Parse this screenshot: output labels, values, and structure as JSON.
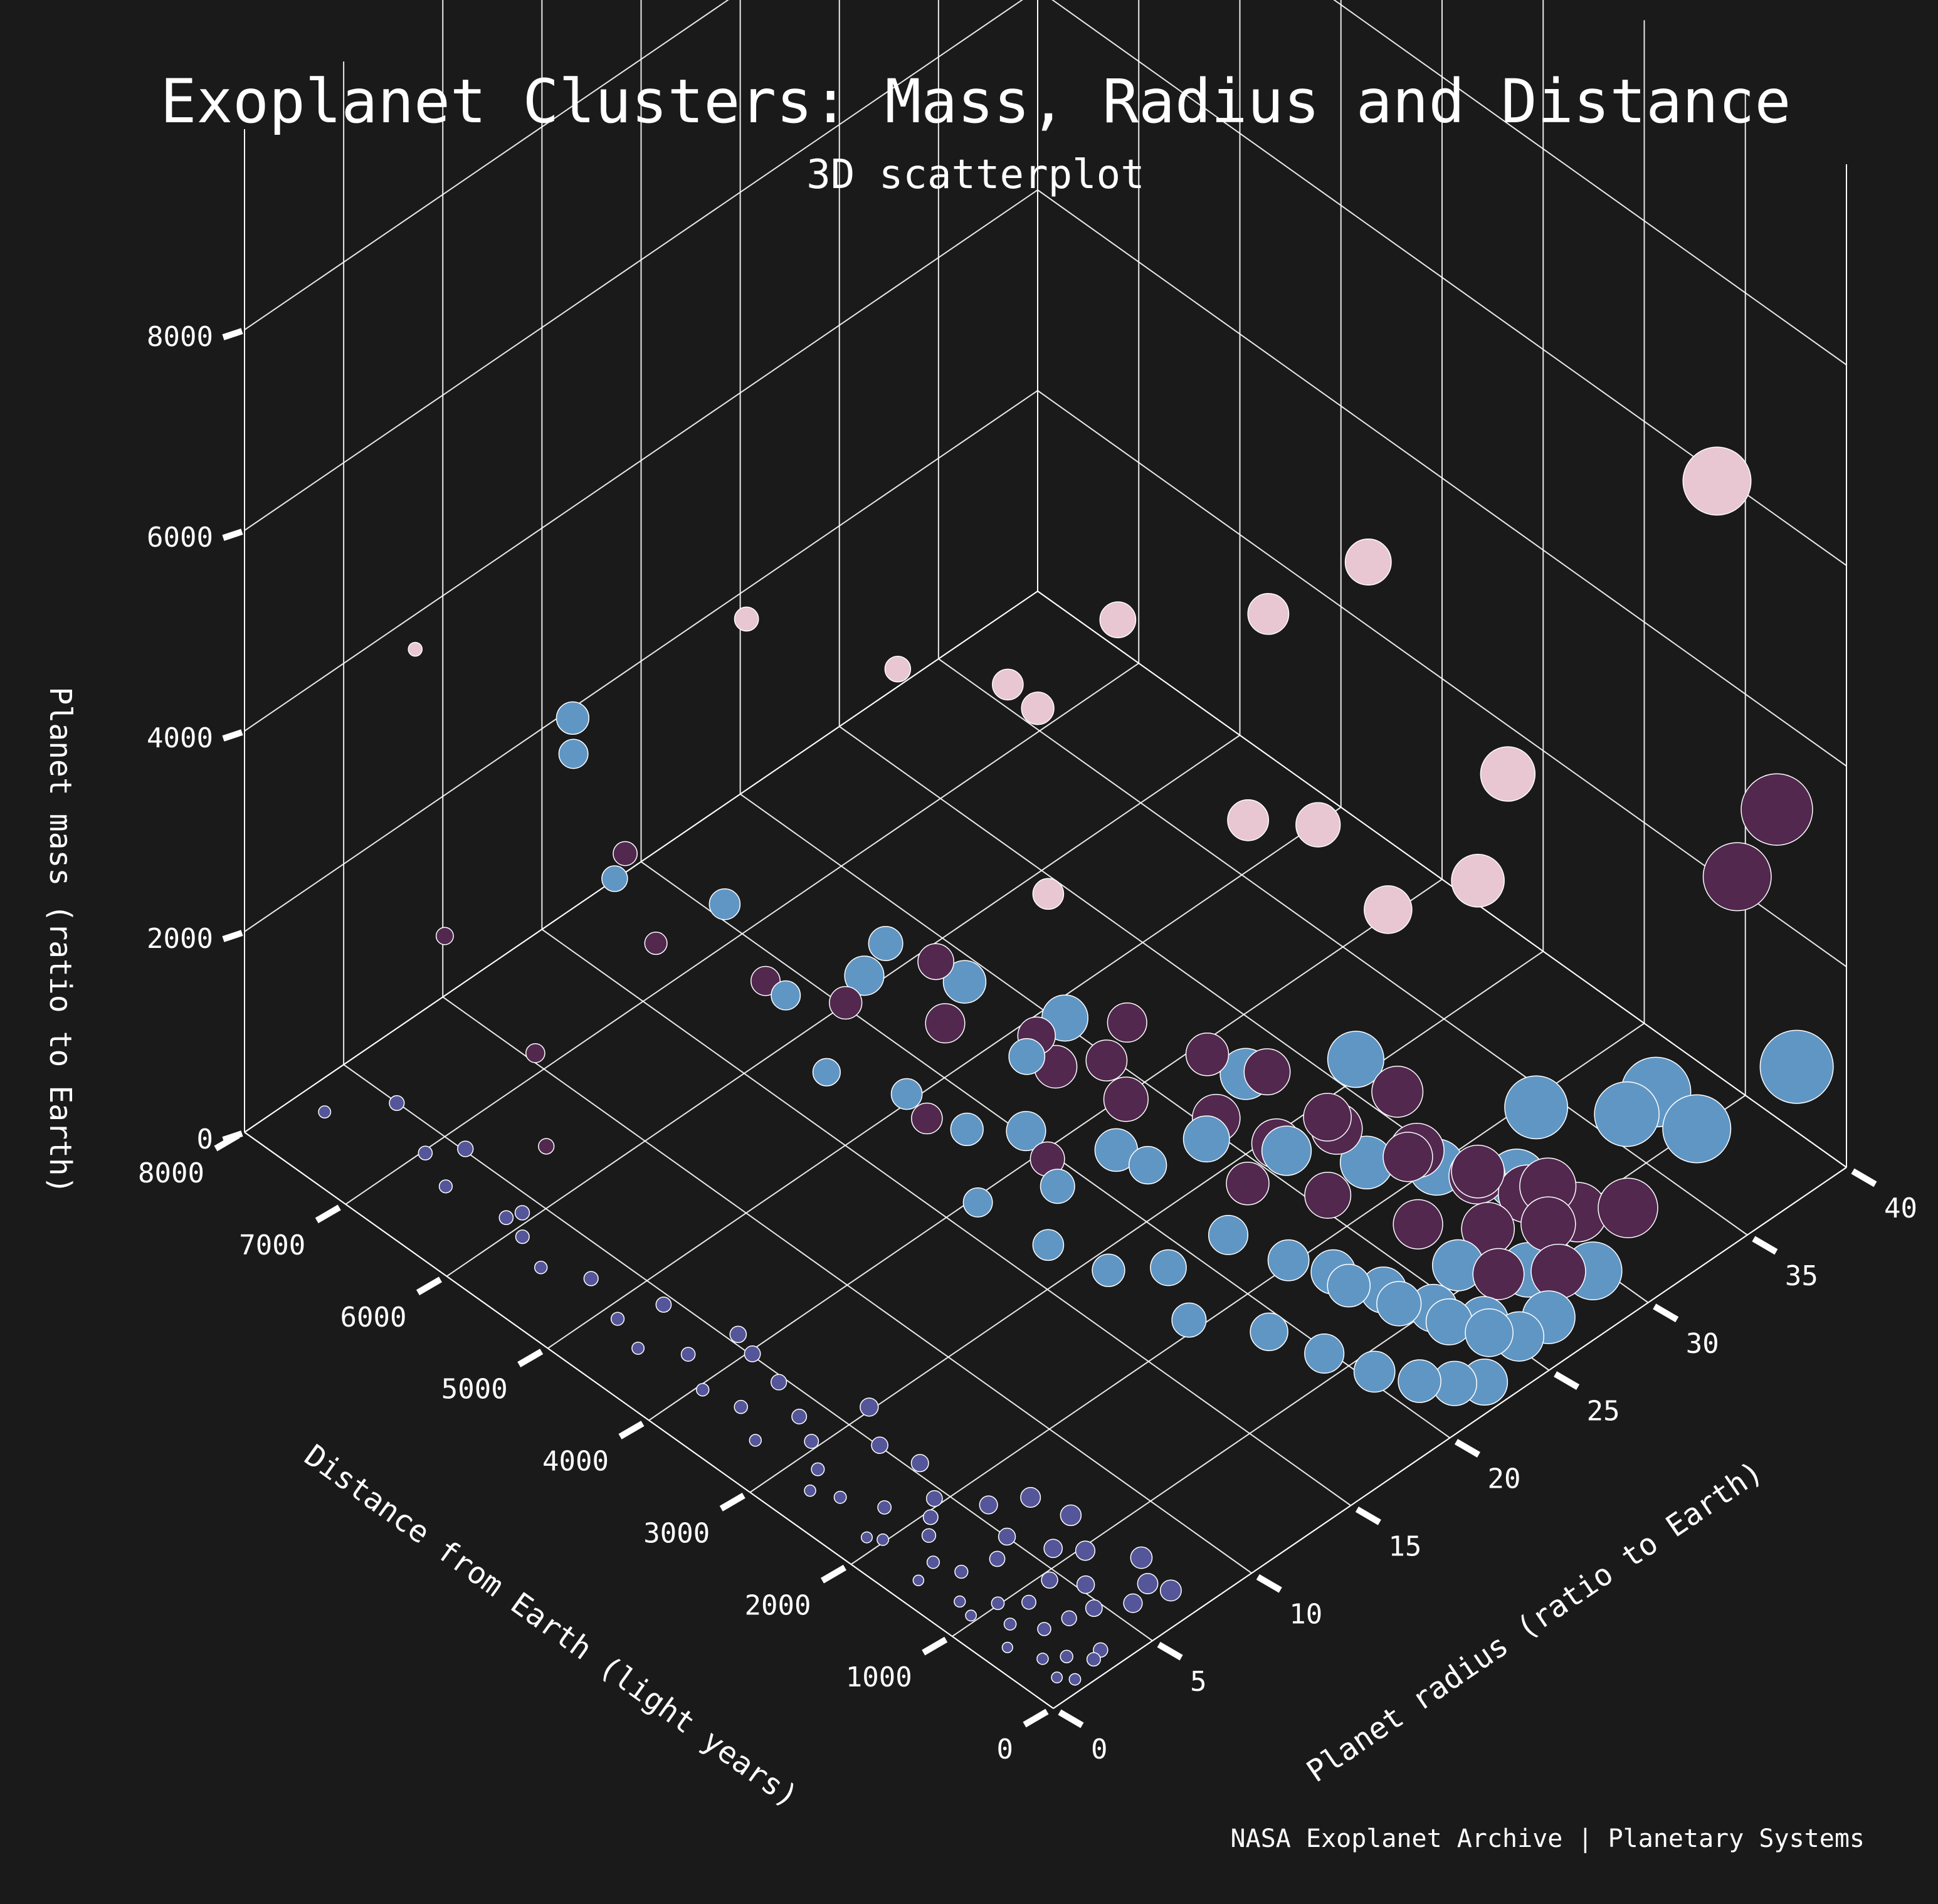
{
  "chart_data": {
    "type": "scatter",
    "projection": "3d",
    "title": "Exoplanet Clusters: Mass, Radius and Distance",
    "subtitle": "3D scatterplot",
    "source": "NASA Exoplanet Archive | Planetary Systems",
    "axes": {
      "x": {
        "label": "Distance from Earth (light years)",
        "range": [
          0,
          8000
        ],
        "ticks": [
          "0",
          "1000",
          "2000",
          "3000",
          "4000",
          "5000",
          "6000",
          "7000",
          "8000"
        ]
      },
      "y": {
        "label": "Planet radius (ratio to Earth)",
        "range": [
          0,
          40
        ],
        "ticks": [
          "0",
          "5",
          "10",
          "15",
          "20",
          "25",
          "30",
          "35",
          "40"
        ]
      },
      "z": {
        "label": "Planet mass (ratio to Earth)",
        "range": [
          0,
          8000
        ],
        "ticks": [
          "0",
          "2000",
          "4000",
          "6000",
          "8000"
        ]
      }
    },
    "grid": true,
    "background": "#1a1a1a",
    "cluster_colors": [
      "#55559a",
      "#6096c4",
      "#52284f",
      "#e8c6d2"
    ],
    "marker_edge_color": "#ffffff",
    "note": "point size increases with planet radius",
    "series": [
      {
        "cluster": 1,
        "color": "#55559a",
        "points": [
          [
            6800,
            3,
            250
          ],
          [
            7600,
            2,
            220
          ],
          [
            6000,
            3,
            180
          ],
          [
            6500,
            2.5,
            200
          ],
          [
            5500,
            2.2,
            150
          ],
          [
            5800,
            2.8,
            160
          ],
          [
            5200,
            3.2,
            120
          ],
          [
            4800,
            2.5,
            100
          ],
          [
            4500,
            2.0,
            90
          ],
          [
            4200,
            3.0,
            110
          ],
          [
            3900,
            2.2,
            80
          ],
          [
            3600,
            2.6,
            70
          ],
          [
            3300,
            1.8,
            60
          ],
          [
            3000,
            3.1,
            90
          ],
          [
            2800,
            2.4,
            50
          ],
          [
            2500,
            2.0,
            40
          ],
          [
            2200,
            2.7,
            60
          ],
          [
            2000,
            1.6,
            30
          ],
          [
            1800,
            2.9,
            40
          ],
          [
            1600,
            2.1,
            25
          ],
          [
            1400,
            2.5,
            20
          ],
          [
            1200,
            1.4,
            15
          ],
          [
            1000,
            2.3,
            20
          ],
          [
            800,
            1.9,
            10
          ],
          [
            600,
            2.6,
            10
          ],
          [
            400,
            1.5,
            5
          ],
          [
            300,
            2.2,
            5
          ],
          [
            200,
            1.2,
            3
          ],
          [
            150,
            2.8,
            4
          ],
          [
            100,
            1.6,
            2
          ],
          [
            2600,
            4.5,
            150
          ],
          [
            2300,
            5.0,
            120
          ],
          [
            2000,
            4.2,
            90
          ],
          [
            1700,
            5.4,
            80
          ],
          [
            1400,
            4.8,
            60
          ],
          [
            1100,
            5.6,
            50
          ],
          [
            900,
            4.4,
            40
          ],
          [
            700,
            5.2,
            30
          ],
          [
            500,
            4.6,
            20
          ],
          [
            350,
            5.8,
            15
          ],
          [
            1500,
            6.5,
            150
          ],
          [
            1200,
            7.0,
            120
          ],
          [
            900,
            6.2,
            90
          ],
          [
            600,
            7.5,
            60
          ],
          [
            400,
            6.8,
            40
          ],
          [
            250,
            7.2,
            25
          ],
          [
            3500,
            4.0,
            200
          ],
          [
            4000,
            4.5,
            250
          ],
          [
            3200,
            3.5,
            140
          ],
          [
            2900,
            5.5,
            180
          ],
          [
            7200,
            3.6,
            380
          ],
          [
            6600,
            4.0,
            300
          ],
          [
            5900,
            3.3,
            260
          ],
          [
            4600,
            3.8,
            210
          ],
          [
            3800,
            4.2,
            240
          ],
          [
            1900,
            3.5,
            70
          ],
          [
            1300,
            3.8,
            45
          ],
          [
            850,
            3.1,
            30
          ],
          [
            550,
            3.6,
            18
          ],
          [
            180,
            3.3,
            8
          ],
          [
            2700,
            1.5,
            30
          ],
          [
            2100,
            1.3,
            22
          ],
          [
            1550,
            1.1,
            15
          ],
          [
            1050,
            1.2,
            10
          ],
          [
            650,
            1.0,
            6
          ]
        ]
      },
      {
        "cluster": 2,
        "color": "#6096c4",
        "points": [
          [
            7500,
            14,
            2600
          ],
          [
            7100,
            12,
            2800
          ],
          [
            6300,
            10,
            2400
          ],
          [
            5800,
            13,
            2100
          ],
          [
            5000,
            12,
            1900
          ],
          [
            4600,
            15,
            2300
          ],
          [
            4400,
            11,
            1700
          ],
          [
            4000,
            13,
            1500
          ],
          [
            3600,
            14,
            1300
          ],
          [
            3400,
            16,
            1900
          ],
          [
            3100,
            12,
            1200
          ],
          [
            2900,
            15,
            1100
          ],
          [
            2600,
            13,
            1000
          ],
          [
            2400,
            17,
            1400
          ],
          [
            2200,
            14,
            900
          ],
          [
            2000,
            16,
            800
          ],
          [
            1800,
            18,
            1000
          ],
          [
            1600,
            15,
            700
          ],
          [
            1400,
            19,
            900
          ],
          [
            1200,
            17,
            600
          ],
          [
            1000,
            20,
            800
          ],
          [
            850,
            18,
            500
          ],
          [
            700,
            21,
            700
          ],
          [
            550,
            19,
            400
          ],
          [
            400,
            22,
            600
          ],
          [
            300,
            20,
            350
          ],
          [
            200,
            23,
            500
          ],
          [
            150,
            21,
            300
          ],
          [
            100,
            24,
            400
          ],
          [
            50,
            22,
            250
          ],
          [
            3800,
            18,
            600
          ],
          [
            3300,
            20,
            500
          ],
          [
            2800,
            22,
            700
          ],
          [
            2400,
            24,
            600
          ],
          [
            2000,
            26,
            500
          ],
          [
            1700,
            28,
            400
          ],
          [
            1300,
            30,
            300
          ],
          [
            900,
            25,
            400
          ],
          [
            600,
            27,
            300
          ],
          [
            350,
            29,
            200
          ],
          [
            100,
            38,
            1200
          ],
          [
            800,
            33,
            900
          ],
          [
            500,
            35,
            700
          ],
          [
            4200,
            22,
            900
          ],
          [
            4800,
            20,
            1100
          ],
          [
            5400,
            18,
            1000
          ],
          [
            3000,
            25,
            800
          ],
          [
            2500,
            28,
            900
          ],
          [
            1500,
            32,
            600
          ],
          [
            1100,
            36,
            500
          ],
          [
            200,
            26,
            250
          ],
          [
            450,
            24,
            300
          ],
          [
            750,
            23,
            350
          ],
          [
            1050,
            22,
            450
          ],
          [
            1350,
            21,
            550
          ]
        ]
      },
      {
        "cluster": 3,
        "color": "#52284f",
        "points": [
          [
            100,
            37,
            3900
          ],
          [
            100,
            35,
            3500
          ],
          [
            6000,
            9,
            3000
          ],
          [
            5500,
            8,
            2600
          ],
          [
            7000,
            5,
            2000
          ],
          [
            5200,
            12,
            1900
          ],
          [
            4800,
            14,
            1700
          ],
          [
            4300,
            16,
            2200
          ],
          [
            3500,
            17,
            1900
          ],
          [
            3200,
            19,
            1600
          ],
          [
            2800,
            18,
            2400
          ],
          [
            2400,
            20,
            2100
          ],
          [
            2200,
            22,
            1800
          ],
          [
            1800,
            23,
            1500
          ],
          [
            1500,
            25,
            1700
          ],
          [
            1200,
            24,
            1400
          ],
          [
            900,
            26,
            1200
          ],
          [
            600,
            28,
            1000
          ],
          [
            400,
            27,
            900
          ],
          [
            200,
            30,
            800
          ],
          [
            4600,
            18,
            1100
          ],
          [
            3900,
            20,
            900
          ],
          [
            3400,
            21,
            800
          ],
          [
            2900,
            23,
            700
          ],
          [
            2500,
            24,
            600
          ],
          [
            2100,
            25,
            900
          ],
          [
            1700,
            27,
            700
          ],
          [
            1300,
            28,
            600
          ],
          [
            1000,
            29,
            500
          ],
          [
            700,
            30,
            400
          ],
          [
            6300,
            6,
            1200
          ],
          [
            5800,
            4,
            900
          ],
          [
            3800,
            13,
            1400
          ],
          [
            3000,
            15,
            1300
          ],
          [
            2000,
            20,
            1100
          ],
          [
            1600,
            22,
            1000
          ],
          [
            1100,
            24,
            800
          ],
          [
            800,
            26,
            700
          ],
          [
            500,
            25,
            600
          ],
          [
            300,
            27,
            500
          ]
        ]
      },
      {
        "cluster": 4,
        "color": "#e8c6d2",
        "points": [
          [
            300,
            35,
            7300
          ],
          [
            1200,
            22,
            7600
          ],
          [
            1600,
            19,
            7200
          ],
          [
            2500,
            16,
            6900
          ],
          [
            4800,
            9,
            6200
          ],
          [
            3500,
            10,
            6500
          ],
          [
            3000,
            13,
            6300
          ],
          [
            2900,
            14,
            6000
          ],
          [
            6900,
            3,
            5200
          ],
          [
            1800,
            19,
            5000
          ],
          [
            1500,
            21,
            4900
          ],
          [
            800,
            27,
            5100
          ],
          [
            900,
            26,
            4100
          ],
          [
            2600,
            13,
            4500
          ],
          [
            1200,
            23,
            4000
          ]
        ]
      }
    ]
  }
}
